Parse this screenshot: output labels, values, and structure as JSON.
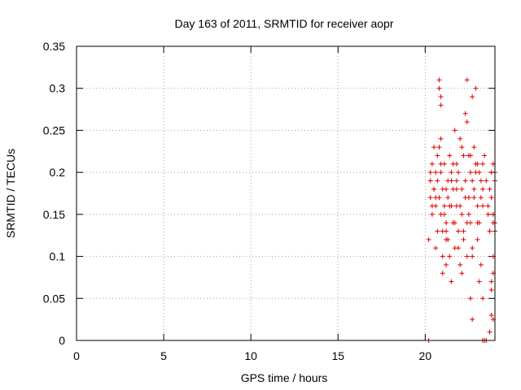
{
  "chart_data": {
    "type": "scatter",
    "title": "Day 163 of 2011, SRMTID for receiver aopr",
    "xlabel": "GPS time / hours",
    "ylabel": "SRMTID / TECUs",
    "xlim": [
      0,
      24
    ],
    "ylim": [
      0,
      0.35
    ],
    "xticks": [
      0,
      5,
      10,
      15,
      20
    ],
    "xtick_labels": [
      "0",
      "5",
      "10",
      "15",
      "20"
    ],
    "yticks": [
      0,
      0.05,
      0.1,
      0.15,
      0.2,
      0.25,
      0.3,
      0.35
    ],
    "ytick_labels": [
      "0",
      "0.05",
      "0.1",
      "0.15",
      "0.2",
      "0.25",
      "0.3",
      "0.35"
    ],
    "grid": true,
    "marker": "plus",
    "color": "#e00000",
    "series": [
      {
        "name": "SRMTID",
        "x": [
          20.2,
          20.3,
          20.3,
          20.4,
          20.4,
          20.5,
          20.5,
          20.6,
          20.6,
          20.7,
          20.7,
          20.8,
          20.8,
          20.9,
          20.9,
          20.9,
          21.0,
          21.0,
          21.0,
          21.1,
          21.1,
          21.2,
          21.2,
          21.2,
          21.3,
          21.3,
          21.4,
          21.4,
          21.5,
          21.5,
          21.6,
          21.6,
          21.7,
          21.7,
          21.8,
          21.8,
          21.9,
          21.9,
          22.0,
          22.0,
          22.1,
          22.1,
          22.2,
          22.2,
          22.3,
          22.3,
          22.4,
          22.4,
          22.5,
          22.5,
          22.6,
          22.6,
          22.7,
          22.7,
          22.8,
          22.8,
          22.9,
          22.9,
          23.0,
          23.0,
          23.1,
          23.1,
          23.2,
          23.2,
          23.3,
          23.3,
          23.4,
          23.5,
          23.6,
          23.7,
          23.7,
          23.8,
          23.8,
          23.9,
          23.9,
          24.0,
          24.0,
          24.0,
          20.4,
          20.5,
          20.6,
          20.7,
          20.8,
          20.9,
          21.0,
          21.1,
          21.2,
          21.3,
          21.4,
          21.5,
          21.6,
          21.7,
          21.8,
          21.9,
          22.0,
          22.1,
          22.2,
          22.3,
          22.4,
          22.5,
          22.6,
          22.7,
          22.8,
          22.9,
          23.0,
          23.1,
          23.2,
          23.3,
          23.8,
          23.9,
          20.3,
          20.6,
          20.9,
          21.2,
          21.5,
          21.8,
          22.1,
          22.4,
          22.7,
          23.0,
          23.3,
          23.6,
          23.9,
          20.2,
          23.3,
          23.4,
          23.5,
          20.8,
          20.9,
          22.6,
          22.7,
          23.8,
          23.9,
          23.7,
          23.8,
          23.9,
          24.0
        ],
        "y": [
          0.12,
          0.17,
          0.19,
          0.21,
          0.15,
          0.23,
          0.18,
          0.2,
          0.16,
          0.22,
          0.19,
          0.31,
          0.23,
          0.29,
          0.2,
          0.15,
          0.18,
          0.1,
          0.13,
          0.16,
          0.21,
          0.14,
          0.12,
          0.09,
          0.19,
          0.17,
          0.16,
          0.22,
          0.2,
          0.07,
          0.14,
          0.18,
          0.25,
          0.11,
          0.21,
          0.16,
          0.2,
          0.13,
          0.24,
          0.09,
          0.18,
          0.15,
          0.22,
          0.12,
          0.27,
          0.19,
          0.31,
          0.26,
          0.22,
          0.17,
          0.14,
          0.2,
          0.29,
          0.1,
          0.23,
          0.18,
          0.3,
          0.21,
          0.16,
          0.12,
          0.2,
          0.14,
          0.19,
          0.17,
          0.21,
          0.16,
          0.22,
          0.19,
          0.15,
          0.18,
          0.13,
          0.2,
          0.17,
          0.21,
          0.15,
          0.19,
          0.14,
          0.2,
          0.16,
          0.18,
          0.11,
          0.13,
          0.17,
          0.24,
          0.08,
          0.15,
          0.18,
          0.12,
          0.1,
          0.16,
          0.21,
          0.14,
          0.19,
          0.11,
          0.16,
          0.08,
          0.13,
          0.17,
          0.1,
          0.15,
          0.22,
          0.11,
          0.17,
          0.2,
          0.14,
          0.07,
          0.09,
          0.05,
          0.06,
          0.08,
          0.2,
          0.17,
          0.21,
          0.13,
          0.19,
          0.18,
          0.23,
          0.14,
          0.19,
          0.21,
          0.18,
          0.16,
          0.14,
          0.0,
          0.0,
          0.0,
          0.0,
          0.3,
          0.28,
          0.05,
          0.025,
          0.03,
          0.025,
          0.01,
          0.07,
          0.1,
          0.13
        ]
      }
    ]
  }
}
